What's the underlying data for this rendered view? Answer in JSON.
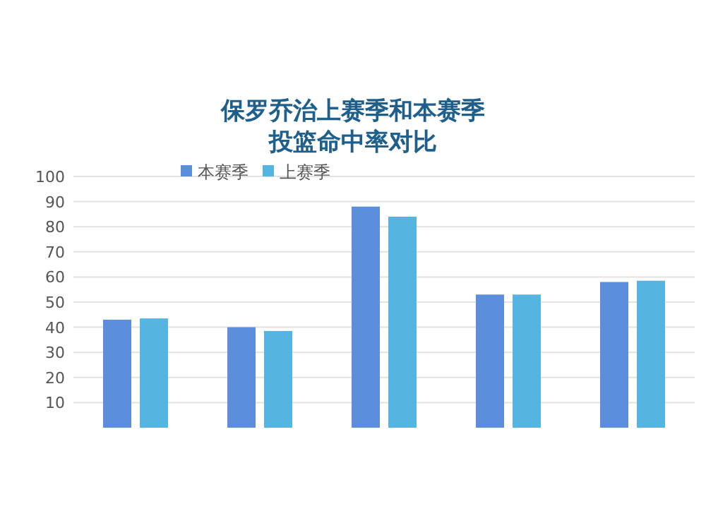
{
  "chart_data": {
    "type": "bar",
    "title": "保罗乔治上赛季和本赛季投篮命中率对比",
    "categories": [
      null,
      null,
      null,
      null,
      null
    ],
    "series": [
      {
        "name": "本赛季",
        "color": "#5b8fdc",
        "values": [
          43,
          40,
          88,
          53,
          58
        ]
      },
      {
        "name": "上赛季",
        "color": "#55b4e0",
        "values": [
          43.5,
          38.5,
          84,
          53,
          58.5
        ]
      }
    ],
    "ylim": [
      0,
      100
    ],
    "yticks": [
      10,
      20,
      30,
      40,
      50,
      60,
      70,
      80,
      90,
      100
    ],
    "grid": "y",
    "legend": "top left"
  }
}
